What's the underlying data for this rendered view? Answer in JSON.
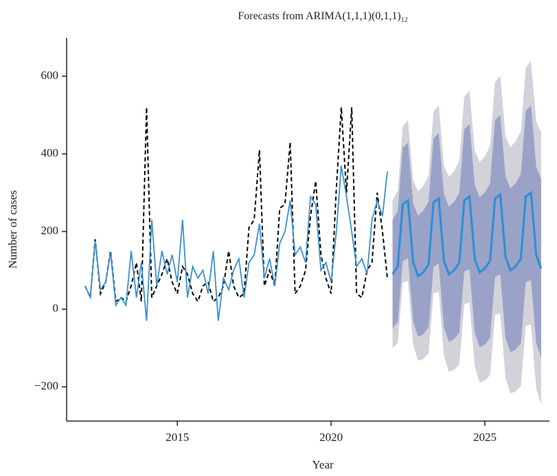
{
  "chart_data": {
    "type": "forecast-line",
    "title": "Forecasts from ARIMA(1,1,1)(0,1,1)",
    "title_subscript": "12",
    "x_label": "Year",
    "y_label": "Number of cases",
    "xlim": [
      2011.4,
      2027.1
    ],
    "xticks": [
      2015,
      2020,
      2025
    ],
    "ylim": [
      -288,
      699
    ],
    "yticks": [
      {
        "value": -200,
        "label": "−200"
      },
      0,
      200,
      400,
      600
    ],
    "series": [
      {
        "color": "#000000",
        "dashed": true,
        "x": [
          2012,
          2012.17,
          2012.33,
          2012.5,
          2012.67,
          2012.83,
          2013,
          2013.17,
          2013.33,
          2013.5,
          2013.67,
          2013.83,
          2014,
          2014.17,
          2014.33,
          2014.5,
          2014.67,
          2014.83,
          2015,
          2015.17,
          2015.33,
          2015.5,
          2015.67,
          2015.83,
          2016,
          2016.17,
          2016.33,
          2016.5,
          2016.67,
          2016.83,
          2017,
          2017.17,
          2017.33,
          2017.5,
          2017.67,
          2017.83,
          2018,
          2018.17,
          2018.33,
          2018.5,
          2018.67,
          2018.83,
          2019,
          2019.17,
          2019.33,
          2019.5,
          2019.67,
          2019.83,
          2020,
          2020.17,
          2020.33,
          2020.5,
          2020.67,
          2020.83,
          2021,
          2021.17,
          2021.33,
          2021.5,
          2021.67,
          2021.83
        ],
        "values": [
          60,
          30,
          180,
          40,
          70,
          150,
          20,
          30,
          20,
          60,
          120,
          20,
          520,
          30,
          60,
          90,
          130,
          70,
          40,
          110,
          90,
          40,
          20,
          60,
          70,
          20,
          30,
          60,
          150,
          60,
          30,
          40,
          210,
          230,
          410,
          60,
          100,
          60,
          260,
          270,
          430,
          40,
          60,
          100,
          240,
          330,
          140,
          80,
          40,
          310,
          520,
          300,
          520,
          40,
          30,
          100,
          120,
          300,
          200,
          80
        ]
      },
      {
        "color": "#3a8fcf",
        "dashed": false,
        "x": [
          2012,
          2012.17,
          2012.33,
          2012.5,
          2012.67,
          2012.83,
          2013,
          2013.17,
          2013.33,
          2013.5,
          2013.67,
          2013.83,
          2014,
          2014.17,
          2014.33,
          2014.5,
          2014.67,
          2014.83,
          2015,
          2015.17,
          2015.33,
          2015.5,
          2015.67,
          2015.83,
          2016,
          2016.17,
          2016.33,
          2016.5,
          2016.67,
          2016.83,
          2017,
          2017.17,
          2017.33,
          2017.5,
          2017.67,
          2017.83,
          2018,
          2018.17,
          2018.33,
          2018.5,
          2018.67,
          2018.83,
          2019,
          2019.17,
          2019.33,
          2019.5,
          2019.67,
          2019.83,
          2020,
          2020.17,
          2020.33,
          2020.5,
          2020.67,
          2020.83,
          2021,
          2021.17,
          2021.33,
          2021.5,
          2021.67,
          2021.83
        ],
        "values": [
          60,
          30,
          175,
          50,
          70,
          145,
          10,
          30,
          10,
          150,
          30,
          120,
          -30,
          230,
          60,
          150,
          90,
          140,
          70,
          230,
          30,
          110,
          80,
          100,
          40,
          150,
          -30,
          80,
          50,
          100,
          130,
          30,
          120,
          140,
          220,
          80,
          130,
          60,
          170,
          200,
          280,
          140,
          160,
          120,
          290,
          270,
          100,
          120,
          70,
          200,
          370,
          290,
          200,
          110,
          130,
          90,
          230,
          280,
          240,
          355
        ]
      }
    ],
    "forecast": {
      "color": "#2f8fd6",
      "x": [
        2022,
        2022.17,
        2022.33,
        2022.5,
        2022.67,
        2022.83,
        2023,
        2023.17,
        2023.33,
        2023.5,
        2023.67,
        2023.83,
        2024,
        2024.17,
        2024.33,
        2024.5,
        2024.67,
        2024.83,
        2025,
        2025.17,
        2025.33,
        2025.5,
        2025.67,
        2025.83,
        2026,
        2026.17,
        2026.33,
        2026.5,
        2026.67,
        2026.83
      ],
      "values": [
        90,
        110,
        270,
        280,
        120,
        85,
        95,
        115,
        275,
        285,
        125,
        90,
        100,
        120,
        280,
        290,
        130,
        95,
        105,
        125,
        285,
        295,
        135,
        100,
        110,
        130,
        290,
        300,
        140,
        105
      ],
      "intervals": [
        {
          "color": "#d2d2da",
          "lower": [
            -100,
            -86,
            69,
            73,
            -92,
            -133,
            -128,
            -114,
            41,
            45,
            -120,
            -161,
            -156,
            -142,
            13,
            17,
            -148,
            -189,
            -184,
            -170,
            -15,
            -11,
            -176,
            -217,
            -212,
            -198,
            -43,
            -39,
            -204,
            -245
          ],
          "upper": [
            280,
            306,
            471,
            487,
            332,
            303,
            318,
            344,
            509,
            525,
            370,
            341,
            356,
            382,
            547,
            563,
            408,
            379,
            394,
            420,
            585,
            601,
            446,
            417,
            432,
            458,
            623,
            639,
            484,
            455
          ]
        },
        {
          "color": "#9aa2c7",
          "lower": [
            -50,
            -33,
            124,
            131,
            -32,
            -71,
            -64,
            -47,
            110,
            117,
            -46,
            -84,
            -77,
            -60,
            97,
            103,
            -60,
            -98,
            -91,
            -74,
            83,
            90,
            -73,
            -111,
            -104,
            -88,
            69,
            76,
            -87,
            -125
          ],
          "upper": [
            230,
            253,
            416,
            429,
            272,
            241,
            254,
            277,
            440,
            453,
            296,
            264,
            277,
            300,
            463,
            477,
            320,
            288,
            301,
            324,
            487,
            500,
            343,
            311,
            324,
            348,
            511,
            524,
            367,
            335
          ]
        }
      ]
    }
  }
}
